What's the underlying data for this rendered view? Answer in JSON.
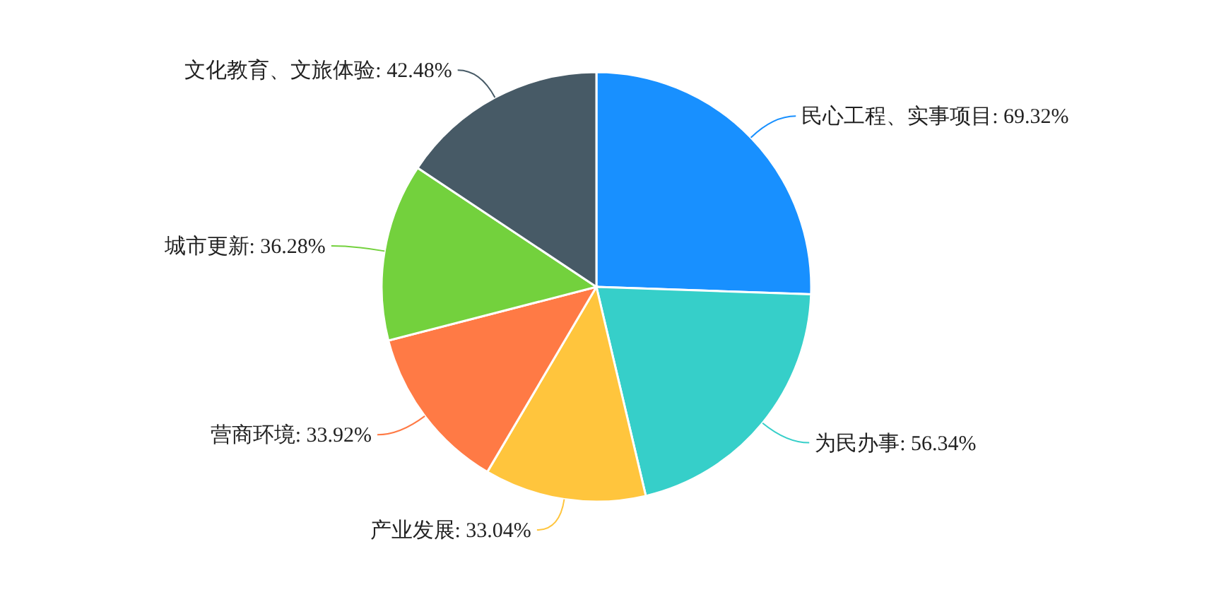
{
  "chart_data": {
    "type": "pie",
    "categories": [
      "民心工程、实事项目",
      "为民办事",
      "产业发展",
      "营商环境",
      "城市更新",
      "文化教育、文旅体验"
    ],
    "values": [
      69.32,
      56.34,
      33.04,
      33.92,
      36.28,
      42.48
    ],
    "value_labels": [
      "69.32%",
      "56.34%",
      "33.04%",
      "33.92%",
      "36.28%",
      "42.48%"
    ],
    "colors": [
      "#1890ff",
      "#36cfc9",
      "#ffc53d",
      "#ff7a45",
      "#73d13d",
      "#475a66"
    ],
    "legend": false
  }
}
